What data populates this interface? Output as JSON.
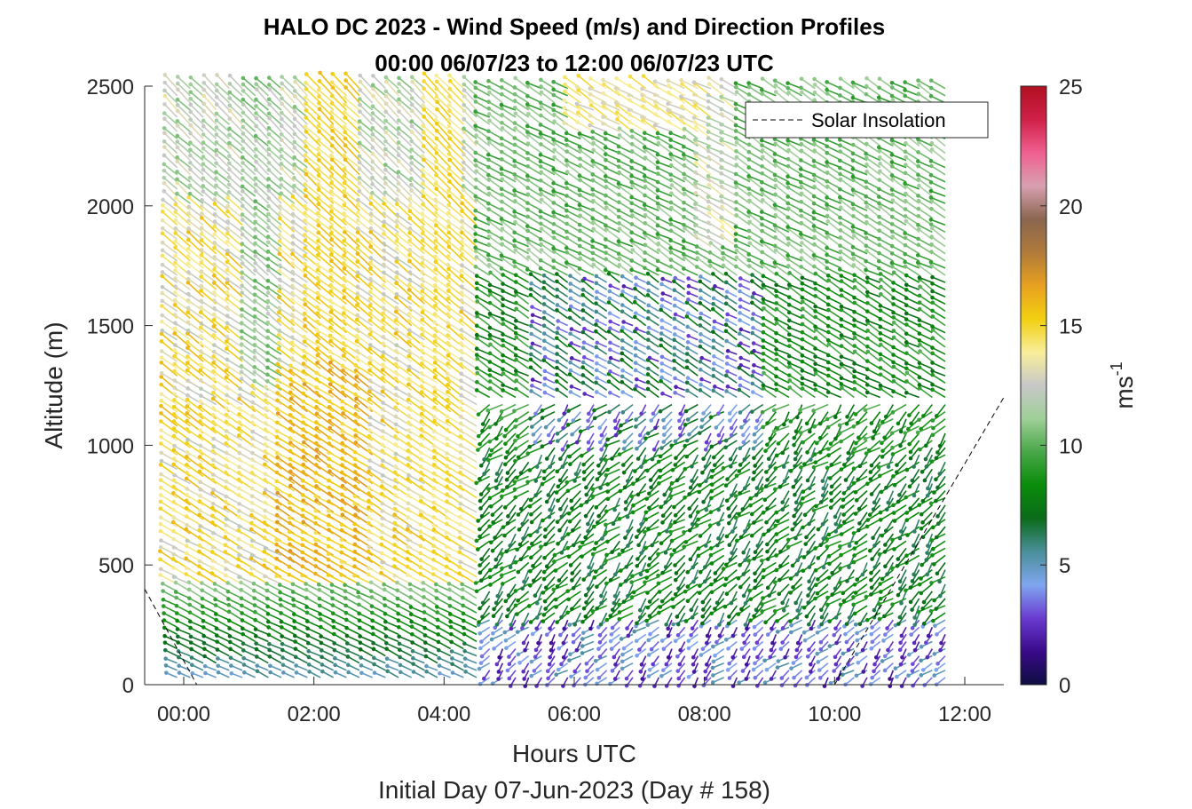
{
  "chart_data": {
    "type": "quiver",
    "title_line1": "HALO DC 2023 - Wind Speed (m/s) and Direction Profiles",
    "title_line2": "00:00 06/07/23 to 12:00 06/07/23  UTC",
    "xlabel": "Hours UTC",
    "subtitle": "Initial Day 07-Jun-2023 (Day # 158)",
    "ylabel": "Altitude (m)",
    "xlim": [
      -0.6,
      12.6
    ],
    "ylim": [
      0,
      2500
    ],
    "x_ticks": [
      0,
      2,
      4,
      6,
      8,
      10,
      12
    ],
    "x_tick_labels": [
      "00:00",
      "02:00",
      "04:00",
      "06:00",
      "08:00",
      "10:00",
      "12:00"
    ],
    "y_ticks": [
      0,
      500,
      1000,
      1500,
      2000,
      2500
    ],
    "y_tick_labels": [
      "0",
      "500",
      "1000",
      "1500",
      "2000",
      "2500"
    ],
    "colorbar": {
      "label_base": "ms",
      "label_exp": "-1",
      "range": [
        0,
        25
      ],
      "ticks": [
        0,
        5,
        10,
        15,
        20,
        25
      ],
      "tick_labels": [
        "0",
        "5",
        "10",
        "15",
        "20",
        "25"
      ],
      "colors": [
        "#0d0d40",
        "#3a0a8a",
        "#6a3bd1",
        "#7fa6f0",
        "#4a8f9a",
        "#0a6b1a",
        "#0a8c0a",
        "#48a848",
        "#9fcf98",
        "#c8c8c8",
        "#f8ee9a",
        "#f2cf10",
        "#e8a020",
        "#b07a3a",
        "#8a6650",
        "#d8a0b0",
        "#f06090",
        "#d02048",
        "#b01020"
      ]
    },
    "legend": {
      "entries": [
        "Solar Insolation"
      ],
      "placement": "top-right"
    },
    "profiles": {
      "times_hours": [
        -0.1,
        0.1,
        0.3,
        0.5,
        0.7,
        0.9,
        1.1,
        1.3,
        1.5,
        1.7,
        1.9,
        2.1,
        2.3,
        2.5,
        2.7,
        2.9,
        3.1,
        3.3,
        3.5,
        3.7,
        3.9,
        4.1,
        4.3,
        4.5,
        4.7,
        4.9,
        5.1,
        5.3,
        5.5,
        5.7,
        5.9,
        6.1,
        6.3,
        6.5,
        6.7,
        6.9,
        7.1,
        7.3,
        7.5,
        7.7,
        7.9,
        8.1,
        8.3,
        8.5,
        8.7,
        8.9,
        9.1,
        9.3,
        9.5,
        9.7,
        9.9,
        10.1,
        10.3,
        10.5,
        10.7,
        10.9,
        11.1,
        11.3,
        11.5,
        11.7
      ],
      "altitude_range_m": [
        30,
        2500
      ],
      "altitude_step_m": 30,
      "speed_note": "approximate 0-12 m/s at low levels, 12-16 m/s aloft before 04:30 UTC; 2-10 m/s after 05:00 UTC"
    },
    "solar_insolation": {
      "x": [
        -0.6,
        0.2,
        10.0,
        12.6
      ],
      "y": [
        400,
        0,
        0,
        1200
      ]
    }
  }
}
